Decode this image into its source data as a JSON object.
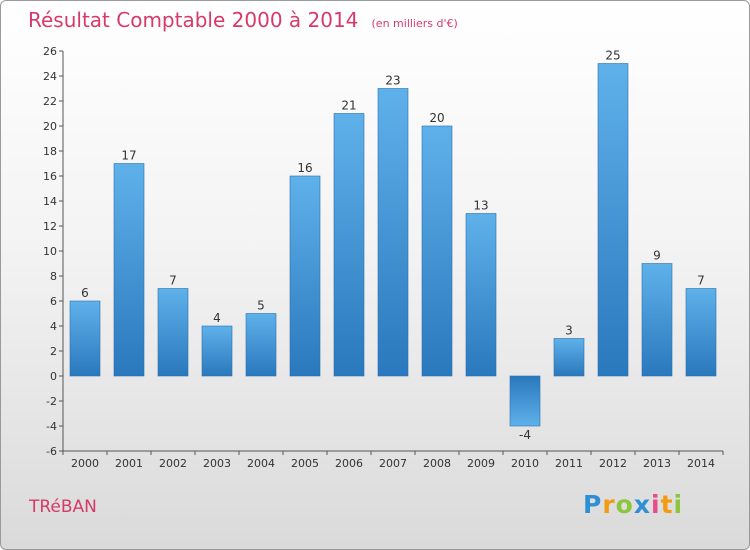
{
  "title": "Résultat Comptable 2000 à 2014",
  "subtitle": "(en milliers d'€)",
  "commune": "TRéBAN",
  "logo": {
    "letters": [
      "P",
      "r",
      "o",
      "x",
      "i",
      "t",
      "i"
    ],
    "colors": [
      "#2f8fd6",
      "#f39c12",
      "#8cc63f",
      "#2f8fd6",
      "#e84a8a",
      "#f39c12",
      "#8cc63f"
    ]
  },
  "colors": {
    "bar": "#3a8fd3",
    "bar_light": "#5fb1ea",
    "bar_dark": "#2a78bd",
    "title": "#d63a6b"
  },
  "chart_data": {
    "type": "bar",
    "title": "Résultat Comptable 2000 à 2014",
    "subtitle": "(en milliers d'€)",
    "categories": [
      "2000",
      "2001",
      "2002",
      "2003",
      "2004",
      "2005",
      "2006",
      "2007",
      "2008",
      "2009",
      "2010",
      "2011",
      "2012",
      "2013",
      "2014"
    ],
    "values": [
      6,
      17,
      7,
      4,
      5,
      16,
      21,
      23,
      20,
      13,
      -4,
      3,
      25,
      9,
      7
    ],
    "data_labels": [
      "6",
      "17",
      "7",
      "4",
      "5",
      "16",
      "21",
      "23",
      "20",
      "13",
      "-4",
      "3",
      "25",
      "9",
      "7"
    ],
    "yticks": [
      -6,
      -4,
      -2,
      0,
      2,
      4,
      6,
      8,
      10,
      12,
      14,
      16,
      18,
      20,
      22,
      24,
      26
    ],
    "ylim": [
      -6,
      26
    ],
    "xlabel": "",
    "ylabel": "",
    "grid": false
  }
}
